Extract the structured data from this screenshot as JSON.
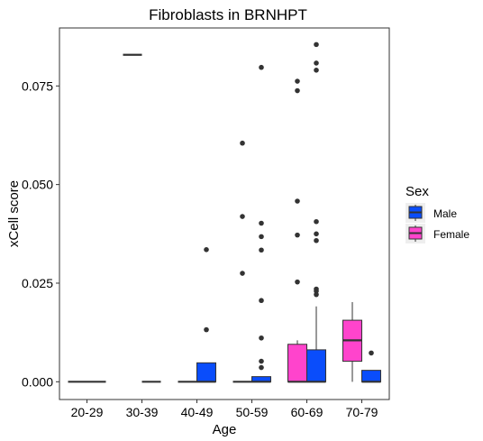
{
  "chart_data": {
    "type": "boxplot",
    "title": "Fibroblasts in BRNHPT",
    "xlabel": "Age",
    "ylabel": "xCell score",
    "categories": [
      "20-29",
      "30-39",
      "40-49",
      "50-59",
      "60-69",
      "70-79"
    ],
    "yticks": [
      "0.000",
      "0.025",
      "0.050",
      "0.075"
    ],
    "ylim": [
      -0.0045,
      0.0897
    ],
    "grid": false,
    "legend": {
      "title": "Sex",
      "placement": "right",
      "entries": [
        "Male",
        "Female"
      ]
    },
    "colors": {
      "Female": "#ff44cc",
      "Male": "#0a4dfb"
    },
    "series": [
      {
        "name": "Female",
        "boxes": [
          {
            "category": "20-29",
            "min": 0,
            "q1": 0,
            "median": 0,
            "q3": 0,
            "max": 0,
            "outliers": []
          },
          {
            "category": "30-39",
            "min": 0.0829,
            "q1": 0.0829,
            "median": 0.0829,
            "q3": 0.0829,
            "max": 0.0829,
            "outliers": []
          },
          {
            "category": "40-49",
            "min": 0,
            "q1": 0,
            "median": 0,
            "q3": 0,
            "max": 0,
            "outliers": []
          },
          {
            "category": "50-59",
            "min": 0,
            "q1": 0,
            "median": 0,
            "q3": 0,
            "max": 0,
            "outliers": [
              0.0605,
              0.0419,
              0.0275
            ]
          },
          {
            "category": "60-69",
            "min": 0,
            "q1": 0,
            "median": 0,
            "q3": 0.0095,
            "max": 0.0105,
            "outliers": [
              0.0762,
              0.0738,
              0.0458,
              0.0372,
              0.0253
            ]
          },
          {
            "category": "70-79",
            "min": 0,
            "q1": 0.0052,
            "median": 0.0105,
            "q3": 0.0156,
            "max": 0.0202,
            "outliers": []
          }
        ]
      },
      {
        "name": "Male",
        "boxes": [
          {
            "category": "20-29",
            "min": 0,
            "q1": 0,
            "median": 0,
            "q3": 0,
            "max": 0,
            "outliers": []
          },
          {
            "category": "30-39",
            "min": 0,
            "q1": 0,
            "median": 0,
            "q3": 0,
            "max": 0,
            "outliers": []
          },
          {
            "category": "40-49",
            "min": 0,
            "q1": 0,
            "median": 0,
            "q3": 0.0048,
            "max": 0.0048,
            "outliers": [
              0.0335,
              0.0132
            ]
          },
          {
            "category": "50-59",
            "min": 0,
            "q1": 0,
            "median": 0,
            "q3": 0.0013,
            "max": 0.0013,
            "outliers": [
              0.0797,
              0.0402,
              0.0368,
              0.0334,
              0.0206,
              0.0111,
              0.0052,
              0.0036
            ]
          },
          {
            "category": "60-69",
            "min": 0,
            "q1": 0,
            "median": 0,
            "q3": 0.0081,
            "max": 0.0191,
            "outliers": [
              0.0855,
              0.0808,
              0.079,
              0.0406,
              0.0375,
              0.0358,
              0.0235,
              0.023,
              0.0221
            ]
          },
          {
            "category": "70-79",
            "min": 0,
            "q1": 0,
            "median": 0,
            "q3": 0.0029,
            "max": 0.0029,
            "outliers": [
              0.0073
            ]
          }
        ]
      }
    ]
  }
}
